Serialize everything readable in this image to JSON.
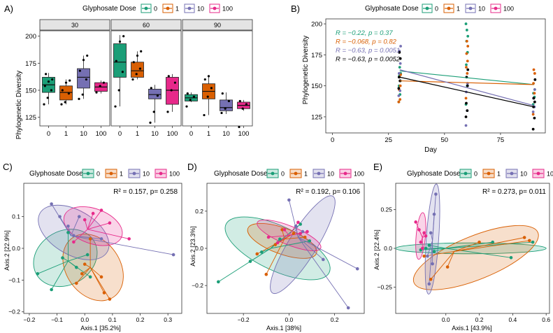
{
  "colors": {
    "0": "#1b9e77",
    "1": "#d95f02",
    "10": "#7570b3",
    "100": "#e7298a",
    "black": "#000000"
  },
  "chart_data": [
    {
      "id": "A",
      "panel_label": "A)",
      "type": "box",
      "legend_title": "Glyphosate Dose",
      "legend_items": [
        "0",
        "1",
        "10",
        "100"
      ],
      "facets": [
        "30",
        "60",
        "90"
      ],
      "categories": [
        "0",
        "1",
        "10",
        "100"
      ],
      "ylabel": "Phylogenetic Diversity",
      "ylim": [
        117,
        205
      ],
      "yticks": [
        125,
        150,
        175,
        200
      ],
      "boxes": {
        "30": [
          {
            "dose": "0",
            "min": 137,
            "q1": 148,
            "med": 155,
            "q3": 162,
            "max": 166,
            "points": [
              137,
              143,
              150,
              154,
              158,
              160,
              165
            ]
          },
          {
            "dose": "1",
            "min": 137,
            "q1": 141,
            "med": 148,
            "q3": 154,
            "max": 160,
            "points": [
              137,
              139,
              147,
              150,
              157,
              159
            ]
          },
          {
            "dose": "10",
            "min": 142,
            "q1": 152,
            "med": 162,
            "q3": 170,
            "max": 182,
            "points": [
              142,
              146,
              160,
              168,
              178,
              182
            ]
          },
          {
            "dose": "100",
            "min": 147,
            "q1": 149,
            "med": 153,
            "q3": 157,
            "max": 159,
            "points": [
              148,
              154,
              157
            ]
          }
        ],
        "60": [
          {
            "dose": "0",
            "min": 135,
            "q1": 162,
            "med": 176,
            "q3": 193,
            "max": 201,
            "points": [
              135,
              150,
              167,
              177,
              195,
              200
            ]
          },
          {
            "dose": "1",
            "min": 160,
            "q1": 162,
            "med": 168,
            "q3": 176,
            "max": 186,
            "points": [
              160,
              165,
              170,
              176,
              182,
              186
            ]
          },
          {
            "dose": "10",
            "min": 120,
            "q1": 142,
            "med": 146,
            "q3": 151,
            "max": 155,
            "points": [
              120,
              130,
              145,
              152
            ]
          },
          {
            "dose": "100",
            "min": 130,
            "q1": 137,
            "med": 150,
            "q3": 162,
            "max": 165,
            "points": [
              130,
              150,
              157,
              163
            ]
          }
        ],
        "90": [
          {
            "dose": "0",
            "min": 139,
            "q1": 140,
            "med": 143,
            "q3": 146,
            "max": 148,
            "points": [
              135,
              141,
              144,
              147
            ]
          },
          {
            "dose": "1",
            "min": 127,
            "q1": 142,
            "med": 149,
            "q3": 156,
            "max": 163,
            "points": [
              127,
              144,
              152,
              160,
              163
            ]
          },
          {
            "dose": "10",
            "min": 128,
            "q1": 131,
            "med": 134,
            "q3": 141,
            "max": 148,
            "points": [
              129,
              133,
              140,
              147
            ]
          },
          {
            "dose": "100",
            "min": 131,
            "q1": 133,
            "med": 136,
            "q3": 139,
            "max": 141,
            "points": [
              116,
              133,
              137,
              140
            ]
          }
        ]
      }
    },
    {
      "id": "B",
      "panel_label": "B)",
      "type": "scatter",
      "legend_title": "Glyphosate Dose",
      "legend_items": [
        "0",
        "1",
        "10",
        "100"
      ],
      "xlabel": "Day",
      "ylabel": "Phylogenetic Diversity",
      "xlim": [
        -3,
        95
      ],
      "ylim": [
        112,
        204
      ],
      "xticks": [
        0,
        25,
        50,
        75
      ],
      "yticks": [
        125,
        150,
        175,
        200
      ],
      "annotations": [
        {
          "group": "0",
          "text": "R = −0.22, p = 0.37"
        },
        {
          "group": "1",
          "text": "R = −0.068, p = 0.82"
        },
        {
          "group": "10",
          "text": "R = −0.63, p = 0.0051"
        },
        {
          "group": "black",
          "text": "R = −0.63, p = 0.0052"
        }
      ],
      "lines": [
        {
          "group": "0",
          "x": [
            30,
            90
          ],
          "y": [
            162,
            151
          ]
        },
        {
          "group": "1",
          "x": [
            30,
            90
          ],
          "y": [
            154,
            151
          ]
        },
        {
          "group": "10",
          "x": [
            30,
            90
          ],
          "y": [
            163,
            134
          ]
        },
        {
          "group": "black",
          "x": [
            30,
            90
          ],
          "y": [
            157,
            133
          ]
        }
      ],
      "points": [
        {
          "group": "0",
          "x": 30,
          "y": [
            137,
            143,
            150,
            154,
            158,
            160,
            165
          ]
        },
        {
          "group": "1",
          "x": 30,
          "y": [
            137,
            139,
            147,
            150,
            157,
            159
          ]
        },
        {
          "group": "10",
          "x": 30,
          "y": [
            142,
            146,
            160,
            168,
            178,
            182
          ]
        },
        {
          "group": "black",
          "x": 30,
          "y": [
            148,
            154,
            157,
            172,
            177
          ]
        },
        {
          "group": "0",
          "x": 60,
          "y": [
            135,
            150,
            167,
            177,
            186,
            190,
            195,
            200
          ]
        },
        {
          "group": "1",
          "x": 60,
          "y": [
            140,
            160,
            165,
            170,
            176,
            182,
            186
          ]
        },
        {
          "group": "10",
          "x": 60,
          "y": [
            118,
            130,
            145,
            152
          ]
        },
        {
          "group": "black",
          "x": 60,
          "y": [
            125,
            130,
            136,
            150,
            157,
            163
          ]
        },
        {
          "group": "0",
          "x": 90,
          "y": [
            135,
            141,
            144,
            147
          ]
        },
        {
          "group": "1",
          "x": 90,
          "y": [
            127,
            144,
            152,
            160,
            163
          ]
        },
        {
          "group": "10",
          "x": 90,
          "y": [
            129,
            133,
            140,
            147
          ]
        },
        {
          "group": "black",
          "x": 90,
          "y": [
            115,
            124,
            133,
            137,
            140,
            155
          ]
        }
      ]
    },
    {
      "id": "C",
      "panel_label": "C)",
      "type": "scatter",
      "legend_title": "Glyphosate Dose",
      "legend_items": [
        "0",
        "1",
        "10",
        "100"
      ],
      "stat_text": "R² = 0.157,  p= 0.258",
      "xlabel": "Axis.1  [35.2%]",
      "ylabel": "Axis.2  [22.9%]",
      "xlim": [
        -0.22,
        0.35
      ],
      "ylim": [
        -0.205,
        0.205
      ],
      "xticks": [
        -0.2,
        -0.1,
        0.0,
        0.1,
        0.2,
        0.3
      ],
      "yticks": [
        -0.2,
        -0.1,
        0.0,
        0.1
      ],
      "groups": {
        "0": {
          "centroid": [
            -0.06,
            -0.04
          ],
          "points": [
            [
              -0.17,
              -0.08
            ],
            [
              -0.12,
              -0.13
            ],
            [
              -0.08,
              -0.03
            ],
            [
              -0.03,
              -0.06
            ],
            [
              0.01,
              -0.02
            ],
            [
              -0.06,
              0.05
            ],
            [
              0.02,
              -0.09
            ]
          ],
          "ellipse": {
            "cx": -0.07,
            "cy": -0.03,
            "rx": 0.12,
            "ry": 0.085,
            "angle": 30
          }
        },
        "1": {
          "centroid": [
            0.02,
            -0.06
          ],
          "points": [
            [
              0.0,
              -0.05
            ],
            [
              0.06,
              -0.09
            ],
            [
              0.07,
              -0.14
            ],
            [
              0.09,
              -0.16
            ],
            [
              -0.03,
              -0.11
            ],
            [
              -0.01,
              -0.08
            ],
            [
              0.02,
              0.03
            ]
          ],
          "ellipse": {
            "cx": 0.03,
            "cy": -0.06,
            "rx": 0.13,
            "ry": 0.085,
            "angle": -55
          }
        },
        "10": {
          "centroid": [
            -0.05,
            0.04
          ],
          "points": [
            [
              -0.12,
              0.14
            ],
            [
              -0.09,
              0.1
            ],
            [
              -0.06,
              0.07
            ],
            [
              -0.04,
              0.04
            ],
            [
              0.06,
              0.03
            ],
            [
              0.32,
              -0.02
            ],
            [
              -0.02,
              0.1
            ]
          ],
          "ellipse": {
            "cx": -0.04,
            "cy": 0.05,
            "rx": 0.14,
            "ry": 0.07,
            "angle": -30
          }
        },
        "100": {
          "centroid": [
            0.01,
            0.06
          ],
          "points": [
            [
              0.06,
              0.12
            ],
            [
              0.09,
              0.08
            ],
            [
              0.16,
              0.03
            ],
            [
              -0.04,
              0.02
            ],
            [
              0.0,
              0.09
            ],
            [
              0.03,
              0.11
            ]
          ],
          "ellipse": {
            "cx": 0.03,
            "cy": 0.07,
            "rx": 0.11,
            "ry": 0.055,
            "angle": -20
          }
        }
      }
    },
    {
      "id": "D",
      "panel_label": "D)",
      "type": "scatter",
      "legend_title": "Glyphosate Dose",
      "legend_items": [
        "0",
        "1",
        "10",
        "100"
      ],
      "stat_text": "R² = 0.192,  p= 0.106",
      "xlabel": "Axis.1  [38%]",
      "ylabel": "Axis.2  [23.3%]",
      "xlim": [
        -0.36,
        0.33
      ],
      "ylim": [
        -0.35,
        0.35
      ],
      "xticks": [
        -0.2,
        0.0,
        0.2
      ],
      "yticks": [
        -0.2,
        0.0,
        0.2
      ],
      "groups": {
        "0": {
          "centroid": [
            -0.08,
            0.0
          ],
          "points": [
            [
              -0.31,
              -0.18
            ],
            [
              -0.17,
              -0.07
            ],
            [
              -0.04,
              0.05
            ],
            [
              0.05,
              0.13
            ],
            [
              0.09,
              0.04
            ],
            [
              -0.12,
              -0.02
            ]
          ],
          "ellipse": {
            "cx": -0.05,
            "cy": 0.0,
            "rx": 0.25,
            "ry": 0.12,
            "angle": -25
          }
        },
        "1": {
          "centroid": [
            -0.02,
            0.05
          ],
          "points": [
            [
              -0.14,
              -0.03
            ],
            [
              -0.06,
              0.02
            ],
            [
              0.02,
              0.08
            ],
            [
              -0.03,
              0.1
            ],
            [
              0.07,
              0.06
            ],
            [
              -0.1,
              -0.14
            ]
          ],
          "ellipse": {
            "cx": -0.03,
            "cy": 0.04,
            "rx": 0.16,
            "ry": 0.07,
            "angle": -20
          }
        },
        "10": {
          "centroid": [
            0.04,
            0.06
          ],
          "points": [
            [
              0.0,
              0.26
            ],
            [
              0.03,
              0.12
            ],
            [
              0.06,
              0.09
            ],
            [
              0.15,
              -0.06
            ],
            [
              0.26,
              -0.32
            ],
            [
              0.3,
              -0.11
            ]
          ],
          "ellipse": {
            "cx": 0.06,
            "cy": 0.02,
            "rx": 0.25,
            "ry": 0.075,
            "angle": 58
          }
        },
        "100": {
          "centroid": [
            0.0,
            0.07
          ],
          "points": [
            [
              -0.09,
              0.06
            ],
            [
              -0.02,
              0.1
            ],
            [
              0.04,
              0.14
            ],
            [
              0.05,
              0.08
            ],
            [
              0.08,
              0.09
            ],
            [
              -0.05,
              0.03
            ]
          ],
          "ellipse": {
            "cx": 0.0,
            "cy": 0.07,
            "rx": 0.15,
            "ry": 0.05,
            "angle": -22
          }
        }
      }
    },
    {
      "id": "E",
      "panel_label": "E)",
      "type": "scatter",
      "legend_title": "Glyphosate Dose",
      "legend_items": [
        "0",
        "1",
        "10",
        "100"
      ],
      "stat_text": "R² = 0.273,  p= 0.011",
      "xlabel": "Axis.1  [43.9%]",
      "ylabel": "Axis.2  [22.4%]",
      "xlim": [
        -0.3,
        0.62
      ],
      "ylim": [
        -0.42,
        0.42
      ],
      "xticks": [
        0.0,
        0.2,
        0.4,
        0.6
      ],
      "yticks": [
        -0.25,
        0.0,
        0.25
      ],
      "groups": {
        "0": {
          "centroid": [
            0.0,
            0.0
          ],
          "points": [
            [
              -0.12,
              0.0
            ],
            [
              -0.07,
              -0.02
            ],
            [
              -0.1,
              0.02
            ],
            [
              0.28,
              0.04
            ],
            [
              0.39,
              -0.06
            ],
            [
              0.52,
              0.04
            ],
            [
              -0.15,
              -0.01
            ]
          ],
          "ellipse": {
            "cx": 0.15,
            "cy": 0.0,
            "rx": 0.45,
            "ry": 0.035,
            "angle": 0
          }
        },
        "1": {
          "centroid": [
            0.05,
            -0.02
          ],
          "points": [
            [
              -0.13,
              -0.05
            ],
            [
              -0.09,
              -0.2
            ],
            [
              0.01,
              -0.12
            ],
            [
              0.2,
              0.04
            ],
            [
              0.47,
              0.07
            ],
            [
              0.5,
              0.05
            ]
          ],
          "ellipse": {
            "cx": 0.18,
            "cy": -0.06,
            "rx": 0.4,
            "ry": 0.14,
            "angle": 22
          }
        },
        "10": {
          "centroid": [
            -0.08,
            0.05
          ],
          "points": [
            [
              -0.06,
              0.35
            ],
            [
              -0.07,
              0.22
            ],
            [
              -0.09,
              0.1
            ],
            [
              -0.08,
              -0.1
            ],
            [
              -0.1,
              -0.23
            ],
            [
              -0.11,
              -0.05
            ]
          ],
          "ellipse": {
            "cx": -0.08,
            "cy": 0.06,
            "rx": 0.33,
            "ry": 0.04,
            "angle": 86
          }
        },
        "100": {
          "centroid": [
            -0.14,
            0.07
          ],
          "points": [
            [
              -0.18,
              0.17
            ],
            [
              -0.16,
              0.12
            ],
            [
              -0.12,
              0.08
            ],
            [
              -0.15,
              0.04
            ],
            [
              -0.14,
              0.0
            ],
            [
              -0.13,
              0.1
            ]
          ],
          "ellipse": {
            "cx": -0.15,
            "cy": 0.08,
            "rx": 0.14,
            "ry": 0.03,
            "angle": 85
          }
        }
      }
    }
  ]
}
